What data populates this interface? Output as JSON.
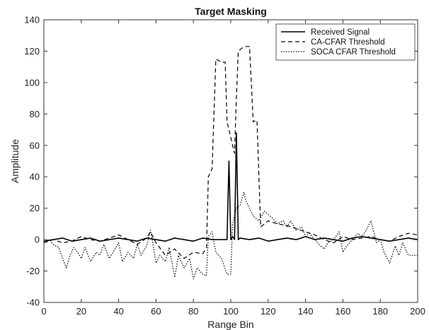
{
  "chart_data": {
    "type": "line",
    "title": "Target Masking",
    "xlabel": "Range Bin",
    "ylabel": "Amplitude",
    "xlim": [
      0,
      200
    ],
    "ylim": [
      -40,
      140
    ],
    "xticks": [
      0,
      20,
      40,
      60,
      80,
      100,
      120,
      140,
      160,
      180,
      200
    ],
    "yticks": [
      -40,
      -20,
      0,
      20,
      40,
      60,
      80,
      100,
      120,
      140
    ],
    "grid": false,
    "legend_position": "top-right",
    "series": [
      {
        "name": "Received Signal",
        "style": "solid",
        "color": "#000000",
        "x": [
          0,
          5,
          10,
          15,
          20,
          25,
          30,
          35,
          40,
          45,
          50,
          55,
          60,
          65,
          70,
          75,
          80,
          85,
          90,
          95,
          98,
          99,
          100,
          101,
          102,
          103,
          104,
          105,
          110,
          115,
          120,
          125,
          130,
          135,
          140,
          145,
          150,
          155,
          160,
          165,
          170,
          175,
          180,
          185,
          190,
          195,
          200
        ],
        "y": [
          -1,
          0,
          1,
          -1,
          0,
          1,
          -1,
          0,
          1,
          0,
          -1,
          1,
          0,
          -1,
          1,
          0,
          -1,
          1,
          0,
          0,
          0,
          50,
          0,
          2,
          0,
          68,
          0,
          1,
          0,
          1,
          -1,
          0,
          1,
          0,
          2,
          0,
          1,
          0,
          -1,
          1,
          2,
          1,
          0,
          -1,
          0,
          1,
          0
        ]
      },
      {
        "name": "CA-CFAR Threshold",
        "style": "dashed",
        "color": "#000000",
        "x": [
          0,
          5,
          10,
          15,
          20,
          25,
          30,
          35,
          40,
          45,
          50,
          55,
          57,
          60,
          65,
          70,
          75,
          80,
          85,
          87,
          88,
          90,
          92,
          95,
          97,
          98,
          100,
          101,
          102,
          103,
          104,
          106,
          108,
          110,
          111,
          112,
          114,
          116,
          120,
          125,
          130,
          135,
          140,
          145,
          150,
          155,
          160,
          165,
          170,
          175,
          180,
          185,
          190,
          195,
          200
        ],
        "y": [
          -2,
          0,
          -2,
          -1,
          2,
          0,
          -1,
          1,
          3,
          0,
          -3,
          1,
          5,
          -2,
          -10,
          -6,
          -12,
          -8,
          -9,
          -5,
          40,
          45,
          115,
          113,
          113,
          75,
          65,
          60,
          55,
          90,
          120,
          122,
          123,
          123,
          100,
          75,
          76,
          8,
          12,
          10,
          9,
          7,
          5,
          3,
          0,
          -2,
          2,
          0,
          1,
          2,
          0,
          -1,
          2,
          4,
          3
        ]
      },
      {
        "name": "SOCA CFAR Threshold",
        "style": "dotted",
        "color": "#000000",
        "x": [
          0,
          3,
          5,
          8,
          10,
          12,
          14,
          16,
          18,
          20,
          22,
          25,
          28,
          30,
          32,
          35,
          38,
          40,
          42,
          45,
          48,
          50,
          52,
          55,
          57,
          58,
          60,
          62,
          65,
          67,
          70,
          72,
          75,
          78,
          80,
          82,
          85,
          87,
          88,
          90,
          92,
          95,
          98,
          100,
          101,
          103,
          105,
          107,
          108,
          110,
          112,
          115,
          118,
          120,
          122,
          125,
          128,
          130,
          132,
          135,
          138,
          140,
          142,
          145,
          148,
          150,
          152,
          155,
          158,
          160,
          162,
          165,
          168,
          170,
          172,
          175,
          178,
          180,
          182,
          185,
          188,
          190,
          192,
          195,
          198,
          200
        ],
        "y": [
          -2,
          0,
          -3,
          -5,
          -12,
          -18,
          -10,
          -5,
          -8,
          -12,
          -5,
          -14,
          -8,
          -10,
          -3,
          -12,
          -6,
          -2,
          -14,
          -8,
          -12,
          -3,
          -10,
          -4,
          6,
          0,
          -15,
          -10,
          -14,
          -5,
          -24,
          -10,
          -18,
          -12,
          -25,
          -18,
          -22,
          -23,
          2,
          5,
          -8,
          -12,
          -22,
          -22,
          10,
          20,
          22,
          30,
          25,
          20,
          15,
          12,
          18,
          16,
          14,
          10,
          12,
          8,
          12,
          6,
          8,
          2,
          4,
          0,
          -4,
          -6,
          -2,
          0,
          5,
          -8,
          -4,
          0,
          4,
          2,
          5,
          12,
          -2,
          0,
          -8,
          -15,
          -4,
          -10,
          -2,
          -10,
          -10,
          -10
        ]
      }
    ]
  }
}
